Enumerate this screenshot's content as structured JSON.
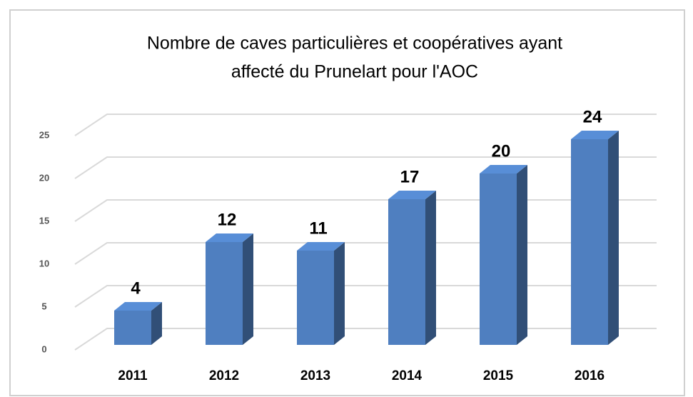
{
  "chart_data": {
    "type": "bar3d",
    "title": [
      "Nombre de caves particulières et coopératives ayant",
      "affecté du Prunelart pour l'AOC"
    ],
    "categories": [
      "2011",
      "2012",
      "2013",
      "2014",
      "2015",
      "2016"
    ],
    "values": [
      4,
      12,
      11,
      17,
      20,
      24
    ],
    "color": "#4f7fc0",
    "ylim": [
      0,
      25
    ],
    "yticks": [
      0,
      5,
      10,
      15,
      20,
      25
    ],
    "grid": true
  }
}
